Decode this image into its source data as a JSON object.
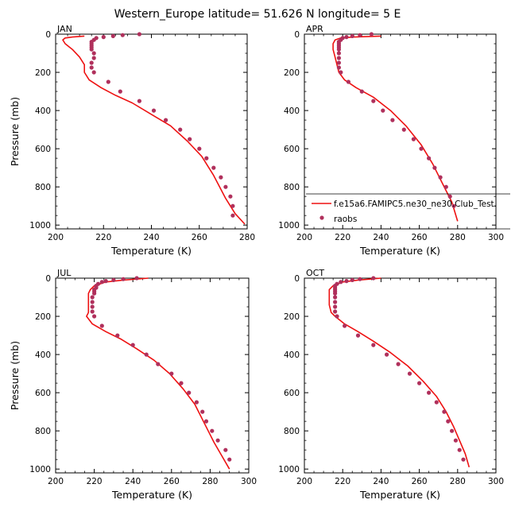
{
  "title": "Western_Europe  latitude= 51.626 N longitude= 5 E",
  "colors": {
    "model": "#ee1111",
    "obs": "#b0305c",
    "axis": "#000000"
  },
  "legend": {
    "placement": "lower-right of APR panel",
    "model_label": "f.e15a6.FAMIPC5.ne30_ne30.Club_Test.",
    "obs_label": "raobs"
  },
  "chart_data": [
    {
      "type": "line",
      "panel": "JAN",
      "xlabel": "Temperature (K)",
      "ylabel": "Pressure (mb)",
      "xlim": [
        200,
        280
      ],
      "ylim": [
        1020,
        0
      ],
      "xticks": [
        200,
        220,
        240,
        260,
        280
      ],
      "yticks": [
        0,
        200,
        400,
        600,
        800,
        1000
      ],
      "series": [
        {
          "role": "model",
          "style": "line",
          "x": [
            212,
            207,
            204,
            203,
            204,
            207,
            210,
            212,
            212,
            214,
            219,
            225,
            232,
            240,
            248,
            255,
            261,
            266,
            271,
            275,
            279
          ],
          "y": [
            10,
            15,
            20,
            30,
            50,
            80,
            120,
            160,
            200,
            240,
            280,
            320,
            360,
            420,
            480,
            560,
            640,
            740,
            860,
            940,
            995
          ]
        },
        {
          "role": "obs",
          "style": "markers",
          "x": [
            235,
            228,
            224,
            220,
            217,
            216,
            215,
            215,
            215,
            215,
            215,
            216,
            216,
            215,
            215,
            216,
            222,
            227,
            235,
            241,
            246,
            252,
            256,
            260,
            263,
            266,
            269,
            271,
            273,
            274,
            274
          ],
          "y": [
            0,
            5,
            10,
            15,
            20,
            30,
            40,
            50,
            60,
            70,
            80,
            100,
            125,
            150,
            175,
            200,
            250,
            300,
            350,
            400,
            450,
            500,
            550,
            600,
            650,
            700,
            750,
            800,
            850,
            900,
            950
          ]
        }
      ]
    },
    {
      "type": "line",
      "panel": "APR",
      "xlabel": "Temperature (K)",
      "ylabel": "",
      "xlim": [
        200,
        300
      ],
      "ylim": [
        1020,
        0
      ],
      "xticks": [
        200,
        220,
        240,
        260,
        280,
        300
      ],
      "yticks": [
        0,
        200,
        400,
        600,
        800,
        1000
      ],
      "series": [
        {
          "role": "model",
          "style": "line",
          "x": [
            240,
            226,
            219,
            216,
            215,
            215,
            216,
            217,
            218,
            221,
            227,
            236,
            245,
            253,
            261,
            267,
            272,
            277,
            280
          ],
          "y": [
            10,
            15,
            20,
            30,
            50,
            80,
            120,
            160,
            200,
            240,
            280,
            330,
            400,
            480,
            580,
            680,
            780,
            880,
            980
          ]
        },
        {
          "role": "obs",
          "style": "markers",
          "x": [
            235,
            229,
            225,
            222,
            220,
            219,
            218,
            218,
            218,
            218,
            218,
            218,
            218,
            218,
            218,
            219,
            223,
            230,
            236,
            241,
            246,
            252,
            257,
            261,
            265,
            268,
            271,
            274,
            276,
            278
          ],
          "y": [
            0,
            5,
            10,
            15,
            20,
            30,
            40,
            50,
            60,
            70,
            80,
            100,
            125,
            150,
            175,
            200,
            250,
            300,
            350,
            400,
            450,
            500,
            550,
            600,
            650,
            700,
            750,
            800,
            850,
            900
          ]
        }
      ]
    },
    {
      "type": "line",
      "panel": "JUL",
      "xlabel": "Temperature (K)",
      "ylabel": "Pressure (mb)",
      "xlim": [
        200,
        300
      ],
      "ylim": [
        1020,
        0
      ],
      "xticks": [
        200,
        220,
        240,
        260,
        280,
        300
      ],
      "yticks": [
        0,
        200,
        400,
        600,
        800,
        1000
      ],
      "series": [
        {
          "role": "model",
          "style": "line",
          "x": [
            248,
            235,
            226,
            220,
            218,
            217,
            217,
            217,
            217,
            216,
            219,
            226,
            234,
            242,
            251,
            259,
            266,
            272,
            276,
            279,
            282,
            286,
            290
          ],
          "y": [
            0,
            10,
            20,
            40,
            60,
            80,
            100,
            140,
            180,
            200,
            240,
            280,
            320,
            370,
            430,
            500,
            580,
            660,
            740,
            800,
            860,
            930,
            1000
          ]
        },
        {
          "role": "obs",
          "style": "markers",
          "x": [
            242,
            235,
            230,
            226,
            224,
            222,
            221,
            221,
            220,
            220,
            220,
            219,
            219,
            219,
            219,
            220,
            224,
            232,
            240,
            247,
            253,
            260,
            265,
            269,
            273,
            276,
            278,
            281,
            284,
            288,
            290
          ],
          "y": [
            0,
            5,
            10,
            15,
            20,
            30,
            40,
            50,
            60,
            70,
            80,
            100,
            125,
            150,
            175,
            200,
            250,
            300,
            350,
            400,
            450,
            500,
            550,
            600,
            650,
            700,
            750,
            800,
            850,
            900,
            950
          ]
        }
      ]
    },
    {
      "type": "line",
      "panel": "OCT",
      "xlabel": "Temperature (K)",
      "ylabel": "",
      "xlim": [
        200,
        300
      ],
      "ylim": [
        1020,
        0
      ],
      "xticks": [
        200,
        220,
        240,
        260,
        280,
        300
      ],
      "yticks": [
        0,
        200,
        400,
        600,
        800,
        1000
      ],
      "series": [
        {
          "role": "model",
          "style": "line",
          "x": [
            240,
            228,
            220,
            215,
            213,
            213,
            213,
            213,
            214,
            216,
            221,
            228,
            236,
            245,
            254,
            262,
            269,
            274,
            278,
            281,
            284,
            286
          ],
          "y": [
            0,
            10,
            20,
            40,
            60,
            80,
            100,
            140,
            180,
            200,
            240,
            280,
            330,
            390,
            460,
            540,
            620,
            700,
            780,
            850,
            920,
            990
          ]
        },
        {
          "role": "obs",
          "style": "markers",
          "x": [
            236,
            229,
            225,
            222,
            219,
            217,
            216,
            216,
            216,
            216,
            216,
            216,
            216,
            216,
            216,
            217,
            221,
            228,
            236,
            243,
            249,
            255,
            260,
            265,
            269,
            273,
            275,
            277,
            279,
            281,
            283
          ],
          "y": [
            0,
            5,
            10,
            15,
            20,
            30,
            40,
            50,
            60,
            70,
            80,
            100,
            125,
            150,
            175,
            200,
            250,
            300,
            350,
            400,
            450,
            500,
            550,
            600,
            650,
            700,
            750,
            800,
            850,
            900,
            950
          ]
        }
      ]
    }
  ]
}
